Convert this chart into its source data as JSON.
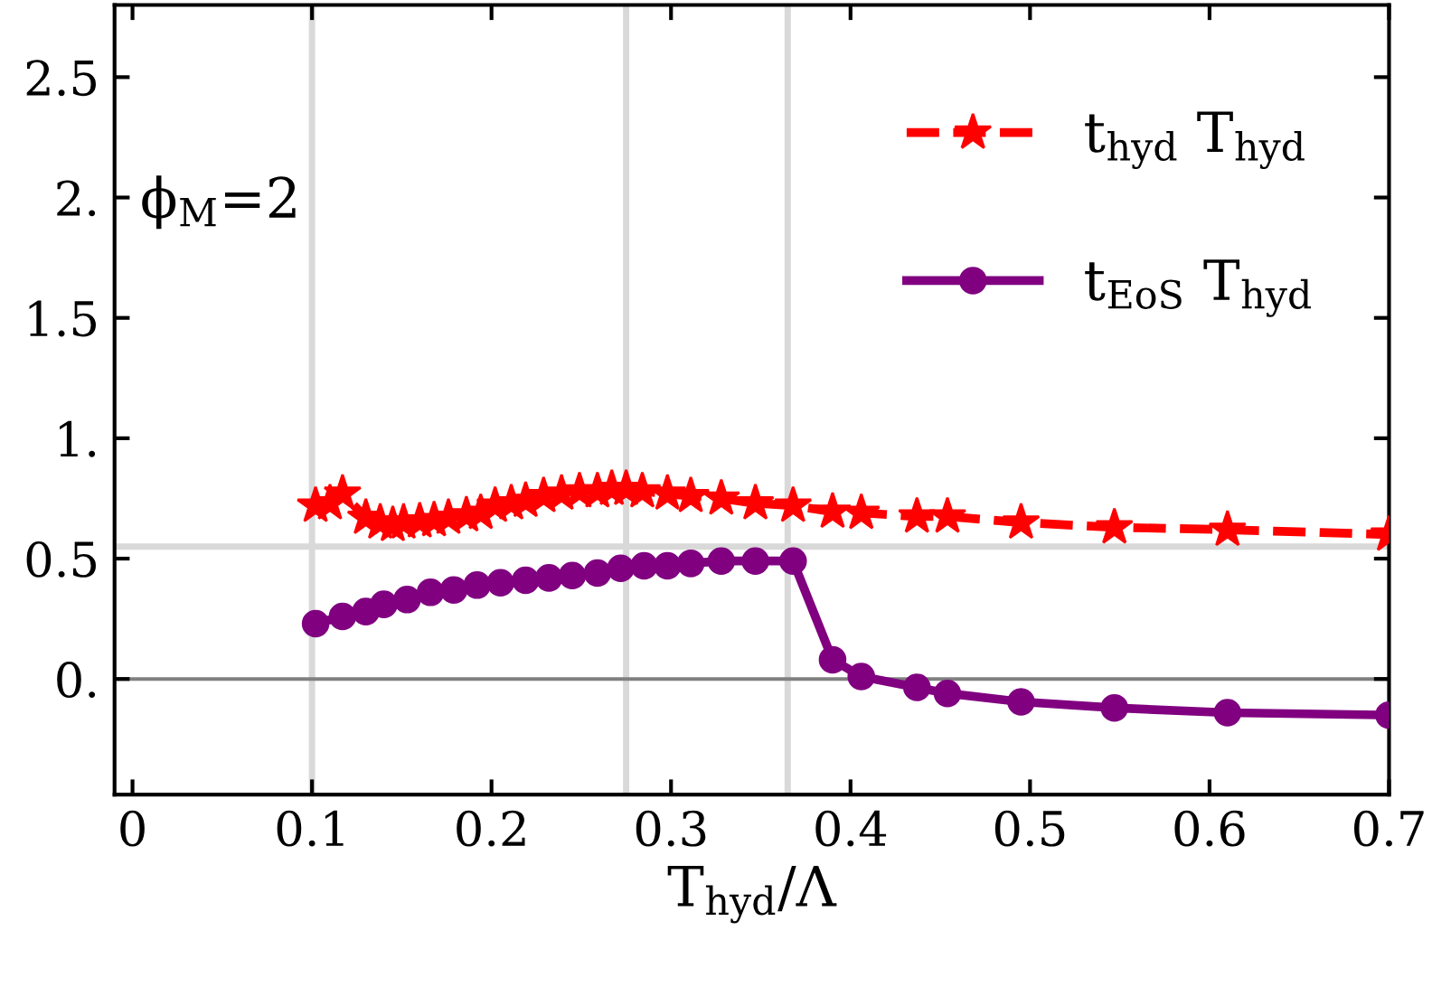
{
  "chart_data": {
    "type": "line",
    "xlabel": "T$_{hyd}$/Λ",
    "annotations": [
      "ϕ$_{M}$=2"
    ],
    "xlim": [
      -0.01,
      0.7
    ],
    "ylim": [
      -0.48,
      2.8
    ],
    "xticks": [
      0,
      0.1,
      0.2,
      0.3,
      0.4,
      0.5,
      0.6,
      0.7
    ],
    "yticks": [
      {
        "value": 0,
        "label": "0."
      },
      0.5,
      {
        "value": 1,
        "label": "1."
      },
      1.5,
      {
        "value": 2,
        "label": "2."
      },
      2.5
    ],
    "grid": false,
    "legend": "top right",
    "ref_lines": [
      {
        "axis": "x",
        "value": 0.1,
        "color": "#d9d9d9"
      },
      {
        "axis": "x",
        "value": 0.275,
        "color": "#d9d9d9"
      },
      {
        "axis": "x",
        "value": 0.365,
        "color": "#d9d9d9"
      },
      {
        "axis": "y",
        "value": 0.55,
        "color": "#d9d9d9"
      },
      {
        "axis": "y",
        "value": 0,
        "color": "#808080"
      }
    ],
    "series": [
      {
        "name": "t$_{hyd}$ T$_{hyd}$",
        "color": "#ff0000",
        "marker": "star",
        "line_style": "dashed",
        "x": [
          0.102,
          0.11,
          0.117,
          0.13,
          0.138,
          0.145,
          0.151,
          0.16,
          0.168,
          0.176,
          0.186,
          0.194,
          0.202,
          0.211,
          0.219,
          0.229,
          0.239,
          0.249,
          0.259,
          0.267,
          0.275,
          0.284,
          0.298,
          0.311,
          0.328,
          0.347,
          0.368,
          0.39,
          0.406,
          0.437,
          0.454,
          0.495,
          0.547,
          0.61,
          0.7
        ],
        "values": [
          0.72,
          0.73,
          0.77,
          0.67,
          0.65,
          0.64,
          0.65,
          0.655,
          0.66,
          0.67,
          0.68,
          0.69,
          0.72,
          0.73,
          0.74,
          0.76,
          0.77,
          0.78,
          0.78,
          0.79,
          0.79,
          0.78,
          0.77,
          0.76,
          0.75,
          0.73,
          0.72,
          0.695,
          0.69,
          0.675,
          0.675,
          0.65,
          0.63,
          0.62,
          0.6
        ]
      },
      {
        "name": "t$_{EoS}$ T$_{hyd}$",
        "color": "#800080",
        "marker": "circle",
        "line_style": "solid",
        "x": [
          0.102,
          0.117,
          0.13,
          0.14,
          0.153,
          0.166,
          0.179,
          0.192,
          0.205,
          0.219,
          0.232,
          0.245,
          0.259,
          0.272,
          0.285,
          0.298,
          0.311,
          0.328,
          0.347,
          0.368,
          0.39,
          0.406,
          0.437,
          0.454,
          0.495,
          0.547,
          0.61,
          0.7
        ],
        "values": [
          0.23,
          0.26,
          0.28,
          0.31,
          0.33,
          0.36,
          0.37,
          0.39,
          0.4,
          0.41,
          0.42,
          0.43,
          0.44,
          0.46,
          0.47,
          0.47,
          0.48,
          0.49,
          0.49,
          0.49,
          0.08,
          0.01,
          -0.035,
          -0.06,
          -0.095,
          -0.12,
          -0.14,
          -0.15
        ]
      }
    ]
  }
}
